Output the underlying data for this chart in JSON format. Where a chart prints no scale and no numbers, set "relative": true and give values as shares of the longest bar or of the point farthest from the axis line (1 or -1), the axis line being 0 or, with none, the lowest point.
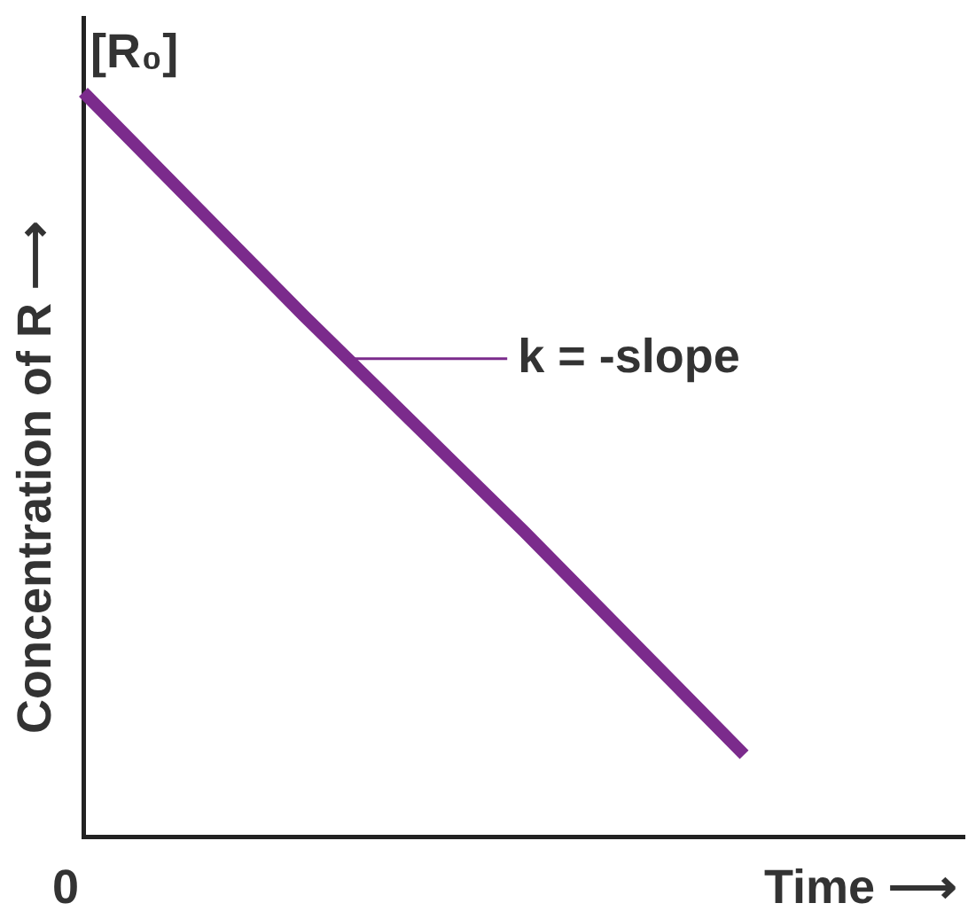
{
  "chart_data": {
    "type": "line",
    "relative": true,
    "xlabel": "Time ⟶",
    "ylabel": "Concentration of R ⟶",
    "categories": [
      null,
      null,
      null,
      null,
      null
    ],
    "series": [
      {
        "color": "#7b2b8c",
        "values": [
          1,
          0.7,
          0.41,
          0.11,
          null
        ]
      }
    ],
    "annotations": [
      "0",
      "[R₀]",
      "k = -slope"
    ],
    "legend": false,
    "grid": false,
    "marker": "none",
    "line_style": "solid"
  }
}
